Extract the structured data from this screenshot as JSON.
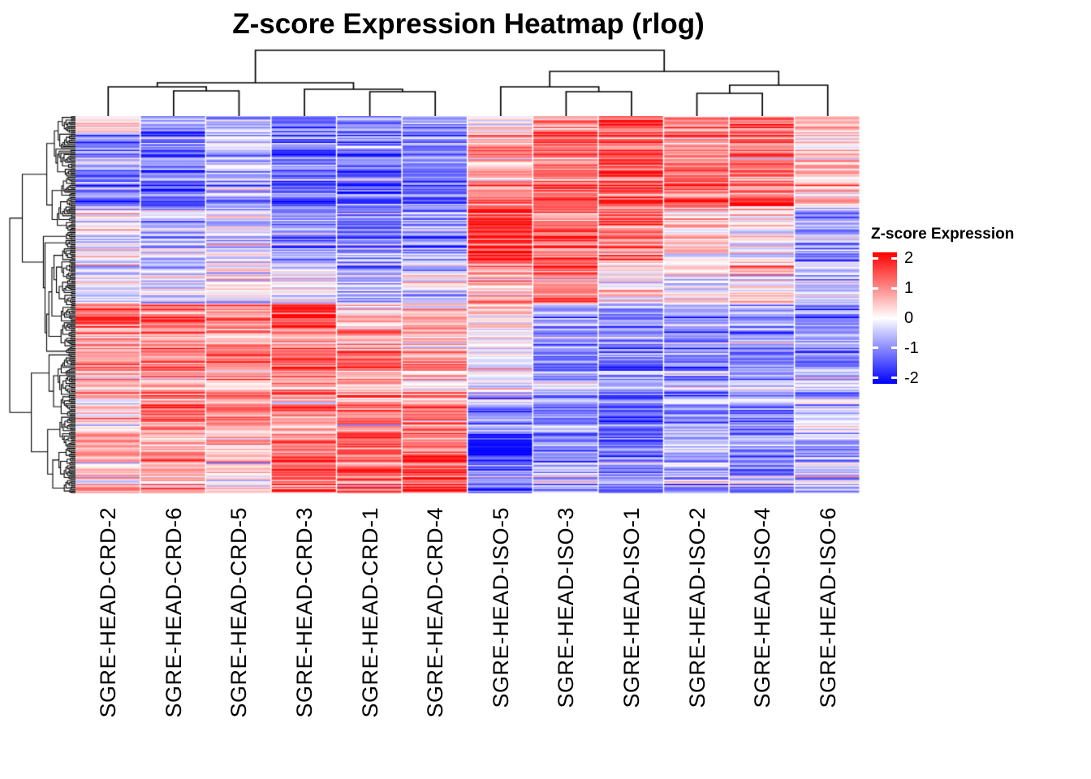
{
  "title": "Z-score Expression Heatmap (rlog)",
  "legend": {
    "title": "Z-score Expression",
    "ticks": [
      "2",
      "1",
      "0",
      "-1",
      "-2"
    ],
    "tick_values": [
      2,
      1,
      0,
      -1,
      -2
    ]
  },
  "colors": {
    "high": "#FF0000",
    "mid": "#FFFFFF",
    "low": "#0000FF",
    "dendrogram": "#000000",
    "background": "#FFFFFF",
    "text": "#000000"
  },
  "chart_data": {
    "type": "heatmap",
    "title": "Z-score Expression Heatmap (rlog)",
    "value_label": "Z-score Expression",
    "value_range": [
      -2.2,
      2.2
    ],
    "columns": [
      "SGRE-HEAD-CRD-2",
      "SGRE-HEAD-CRD-6",
      "SGRE-HEAD-CRD-5",
      "SGRE-HEAD-CRD-3",
      "SGRE-HEAD-CRD-1",
      "SGRE-HEAD-CRD-4",
      "SGRE-HEAD-ISO-5",
      "SGRE-HEAD-ISO-3",
      "SGRE-HEAD-ISO-1",
      "SGRE-HEAD-ISO-2",
      "SGRE-HEAD-ISO-4",
      "SGRE-HEAD-ISO-6"
    ],
    "n_rows_estimate": 280,
    "row_labels_shown": false,
    "column_dendrogram": {
      "y": 6,
      "children": [
        {
          "y": 46,
          "children": [
            {
              "y": 51,
              "children": [
                {
                  "leaf": 0
                },
                {
                  "y": 56,
                  "children": [
                    {
                      "leaf": 1
                    },
                    {
                      "leaf": 2
                    }
                  ]
                }
              ]
            },
            {
              "y": 54,
              "children": [
                {
                  "leaf": 3
                },
                {
                  "y": 57,
                  "children": [
                    {
                      "leaf": 4
                    },
                    {
                      "leaf": 5
                    }
                  ]
                }
              ]
            }
          ]
        },
        {
          "y": 32,
          "children": [
            {
              "y": 51,
              "children": [
                {
                  "leaf": 6
                },
                {
                  "y": 57,
                  "children": [
                    {
                      "leaf": 7
                    },
                    {
                      "leaf": 8
                    }
                  ]
                }
              ]
            },
            {
              "y": 49,
              "children": [
                {
                  "y": 59,
                  "children": [
                    {
                      "leaf": 9
                    },
                    {
                      "leaf": 10
                    }
                  ]
                },
                {
                  "leaf": 11
                }
              ]
            }
          ]
        }
      ]
    },
    "row_bands": [
      {
        "from": 0.0,
        "to": 0.045,
        "values": [
          0.3,
          -0.8,
          -0.5,
          -1.0,
          -0.9,
          -0.9,
          0.4,
          1.2,
          1.5,
          1.2,
          1.2,
          0.8
        ]
      },
      {
        "from": 0.045,
        "to": 0.24,
        "values": [
          -1.0,
          -1.1,
          -0.6,
          -1.3,
          -1.3,
          -1.1,
          0.8,
          1.2,
          1.5,
          1.1,
          1.1,
          0.45
        ]
      },
      {
        "from": 0.24,
        "to": 0.385,
        "values": [
          -0.2,
          -0.6,
          -0.5,
          -1.1,
          -1.2,
          -0.9,
          1.9,
          1.4,
          1.3,
          0.5,
          0.25,
          -0.75
        ]
      },
      {
        "from": 0.385,
        "to": 0.495,
        "values": [
          -0.3,
          -0.5,
          0.0,
          -0.3,
          -0.8,
          -0.4,
          0.6,
          1.2,
          0.3,
          0.2,
          0.4,
          -0.3
        ]
      },
      {
        "from": 0.495,
        "to": 0.56,
        "values": [
          1.5,
          1.2,
          0.9,
          1.7,
          0.4,
          0.7,
          0.4,
          -0.9,
          -1.0,
          -0.9,
          -0.8,
          -1.0
        ]
      },
      {
        "from": 0.56,
        "to": 0.74,
        "values": [
          0.9,
          1.1,
          1.0,
          1.2,
          1.0,
          0.8,
          -0.2,
          -1.0,
          -1.1,
          -1.0,
          -0.9,
          -0.9
        ]
      },
      {
        "from": 0.74,
        "to": 0.835,
        "values": [
          0.3,
          1.3,
          0.9,
          0.8,
          1.0,
          1.1,
          -0.9,
          -0.9,
          -1.2,
          -0.7,
          -0.8,
          -0.4
        ]
      },
      {
        "from": 0.835,
        "to": 0.9,
        "values": [
          0.6,
          0.5,
          0.4,
          1.0,
          1.3,
          1.0,
          -1.8,
          -1.0,
          -1.0,
          -0.6,
          -0.8,
          -0.5
        ]
      },
      {
        "from": 0.9,
        "to": 1.0,
        "values": [
          0.3,
          0.6,
          0.2,
          1.3,
          0.9,
          1.4,
          -1.0,
          -0.5,
          -0.9,
          -0.6,
          -0.8,
          -0.4
        ]
      }
    ]
  }
}
